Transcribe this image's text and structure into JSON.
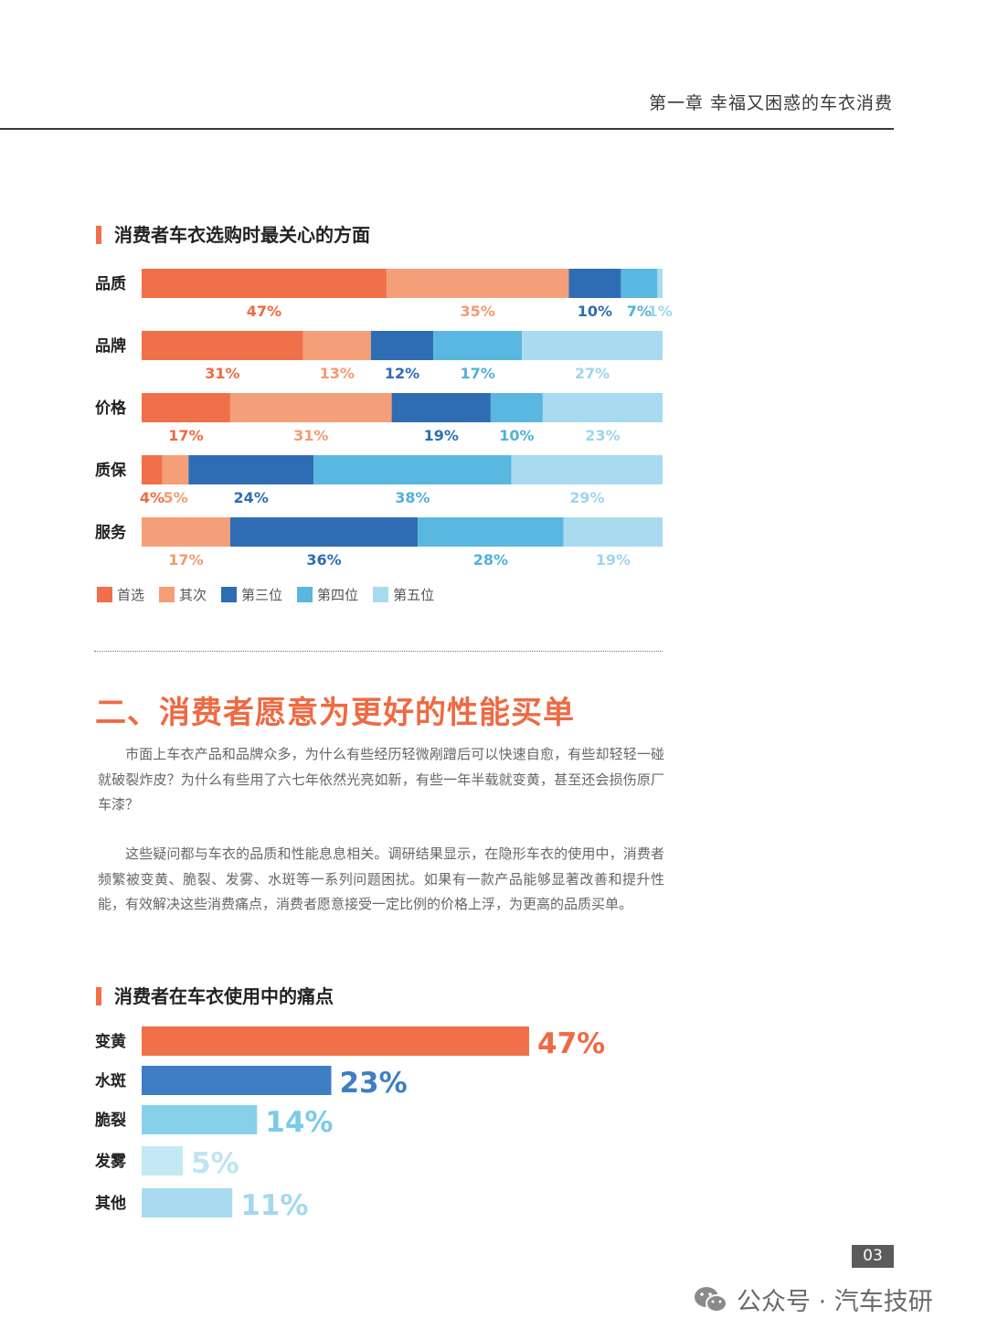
{
  "header": {
    "chapter_title": "第一章  幸福又困惑的车衣消费"
  },
  "chart1_title": "消费者车衣选购时最关心的方面",
  "section_heading": "二、消费者愿意为更好的性能买单",
  "paragraphs": [
    "市面上车衣产品和品牌众多，为什么有些经历轻微剐蹭后可以快速自愈，有些却轻轻一碰就破裂炸皮？为什么有些用了六七年依然光亮如新，有些一年半载就变黄，甚至还会损伤原厂车漆？",
    "这些疑问都与车衣的品质和性能息息相关。调研结果显示，在隐形车衣的使用中，消费者频繁被变黄、脆裂、发雾、水斑等一系列问题困扰。如果有一款产品能够显著改善和提升性能，有效解决这些消费痛点，消费者愿意接受一定比例的价格上浮，为更高的品质买单。"
  ],
  "chart2_title": "消费者在车衣使用中的痛点",
  "page_number": "03",
  "watermark": "公众号 · 汽车技研",
  "colors": {
    "accent": "#ee6a43",
    "first": "#f0704a",
    "second": "#f59f78",
    "third": "#2e6db4",
    "fourth": "#5ab7df",
    "fifth": "#a8dbef"
  },
  "chart_data": [
    {
      "type": "bar",
      "stacked": true,
      "orientation": "horizontal",
      "title": "消费者车衣选购时最关心的方面",
      "categories": [
        "品质",
        "品牌",
        "价格",
        "质保",
        "服务"
      ],
      "series": [
        {
          "name": "首选",
          "color": "#f0704a",
          "values": [
            47,
            31,
            17,
            4,
            0
          ]
        },
        {
          "name": "其次",
          "color": "#f59f78",
          "values": [
            35,
            13,
            31,
            5,
            17
          ]
        },
        {
          "name": "第三位",
          "color": "#2e6db4",
          "values": [
            10,
            12,
            19,
            24,
            36
          ]
        },
        {
          "name": "第四位",
          "color": "#5ab7df",
          "values": [
            7,
            17,
            10,
            38,
            28
          ]
        },
        {
          "name": "第五位",
          "color": "#a8dbef",
          "values": [
            1,
            27,
            23,
            29,
            19
          ]
        }
      ],
      "value_suffix": "%",
      "legend_position": "bottom-left"
    },
    {
      "type": "bar",
      "orientation": "horizontal",
      "title": "消费者在车衣使用中的痛点",
      "categories": [
        "变黄",
        "水斑",
        "脆裂",
        "发雾",
        "其他"
      ],
      "values": [
        47,
        23,
        14,
        5,
        11
      ],
      "colors": [
        "#f0704a",
        "#3d7ec4",
        "#86d0ea",
        "#c5e8f5",
        "#a8dbef"
      ],
      "value_suffix": "%"
    }
  ]
}
